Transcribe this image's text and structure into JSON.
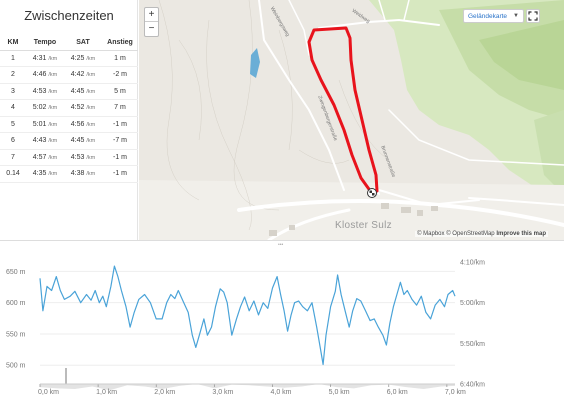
{
  "splits": {
    "title": "Zwischenzeiten",
    "columns": [
      "KM",
      "Tempo",
      "SAT",
      "Anstieg"
    ],
    "unit_km": "/km",
    "rows": [
      {
        "km": "1",
        "tempo": "4:31",
        "sat": "4:25",
        "anstieg": "1 m"
      },
      {
        "km": "2",
        "tempo": "4:46",
        "sat": "4:42",
        "anstieg": "-2 m"
      },
      {
        "km": "3",
        "tempo": "4:53",
        "sat": "4:45",
        "anstieg": "5 m"
      },
      {
        "km": "4",
        "tempo": "5:02",
        "sat": "4:52",
        "anstieg": "7 m"
      },
      {
        "km": "5",
        "tempo": "5:01",
        "sat": "4:56",
        "anstieg": "-1 m"
      },
      {
        "km": "6",
        "tempo": "4:43",
        "sat": "4:45",
        "anstieg": "-7 m"
      },
      {
        "km": "7",
        "tempo": "4:57",
        "sat": "4:53",
        "anstieg": "-1 m"
      },
      {
        "km": "0.14",
        "tempo": "4:35",
        "sat": "4:38",
        "anstieg": "-1 m"
      }
    ]
  },
  "map": {
    "zoom_in": "+",
    "zoom_out": "−",
    "layer_select": "Geländekarte",
    "place_label": "Kloster Sulz",
    "attribution_mapbox": "© Mapbox",
    "attribution_osm": "© OpenStreetMap",
    "attribution_improve": "Improve this map",
    "streets": {
      "s1": "Weinbergsweg",
      "s2": "Weidweg",
      "s3": "Zwingenbergerstraße",
      "s4": "Brunnenstraße",
      "s5": "Hauptstraße"
    },
    "colors": {
      "route": "#e8131c",
      "forest": "#cfe3b4",
      "water": "#6aaed6"
    }
  },
  "chart_data": {
    "type": "line",
    "x_ticks": [
      "0,0 km",
      "1,0 km",
      "2,0 km",
      "3,0 km",
      "4,0 km",
      "5,0 km",
      "6,0 km",
      "7,0 km"
    ],
    "y_left_ticks": [
      "650 m",
      "600 m",
      "550 m",
      "500 m"
    ],
    "y_right_ticks": [
      "4:10/km",
      "5:00/km",
      "5:50/km",
      "6:40/km"
    ],
    "pace_color": "#4aa3d8",
    "elevation_fill": "#e3e3e3",
    "pace_series": [
      {
        "x": 0.0,
        "y": 270
      },
      {
        "x": 0.05,
        "y": 310
      },
      {
        "x": 0.12,
        "y": 280
      },
      {
        "x": 0.2,
        "y": 285
      },
      {
        "x": 0.28,
        "y": 268
      },
      {
        "x": 0.35,
        "y": 285
      },
      {
        "x": 0.42,
        "y": 296
      },
      {
        "x": 0.52,
        "y": 292
      },
      {
        "x": 0.6,
        "y": 286
      },
      {
        "x": 0.7,
        "y": 300
      },
      {
        "x": 0.8,
        "y": 290
      },
      {
        "x": 0.88,
        "y": 297
      },
      {
        "x": 0.95,
        "y": 285
      },
      {
        "x": 1.02,
        "y": 300
      },
      {
        "x": 1.08,
        "y": 292
      },
      {
        "x": 1.14,
        "y": 305
      },
      {
        "x": 1.22,
        "y": 280
      },
      {
        "x": 1.28,
        "y": 255
      },
      {
        "x": 1.34,
        "y": 268
      },
      {
        "x": 1.4,
        "y": 285
      },
      {
        "x": 1.48,
        "y": 305
      },
      {
        "x": 1.55,
        "y": 330
      },
      {
        "x": 1.62,
        "y": 312
      },
      {
        "x": 1.7,
        "y": 296
      },
      {
        "x": 1.8,
        "y": 290
      },
      {
        "x": 1.9,
        "y": 300
      },
      {
        "x": 2.0,
        "y": 320
      },
      {
        "x": 2.1,
        "y": 320
      },
      {
        "x": 2.18,
        "y": 300
      },
      {
        "x": 2.25,
        "y": 290
      },
      {
        "x": 2.32,
        "y": 295
      },
      {
        "x": 2.38,
        "y": 285
      },
      {
        "x": 2.46,
        "y": 298
      },
      {
        "x": 2.55,
        "y": 312
      },
      {
        "x": 2.62,
        "y": 340
      },
      {
        "x": 2.68,
        "y": 355
      },
      {
        "x": 2.75,
        "y": 338
      },
      {
        "x": 2.82,
        "y": 320
      },
      {
        "x": 2.88,
        "y": 340
      },
      {
        "x": 2.95,
        "y": 330
      },
      {
        "x": 3.02,
        "y": 305
      },
      {
        "x": 3.1,
        "y": 283
      },
      {
        "x": 3.16,
        "y": 287
      },
      {
        "x": 3.22,
        "y": 300
      },
      {
        "x": 3.3,
        "y": 340
      },
      {
        "x": 3.38,
        "y": 320
      },
      {
        "x": 3.45,
        "y": 305
      },
      {
        "x": 3.52,
        "y": 293
      },
      {
        "x": 3.6,
        "y": 310
      },
      {
        "x": 3.68,
        "y": 298
      },
      {
        "x": 3.76,
        "y": 315
      },
      {
        "x": 3.84,
        "y": 300
      },
      {
        "x": 3.92,
        "y": 307
      },
      {
        "x": 4.0,
        "y": 282
      },
      {
        "x": 4.08,
        "y": 268
      },
      {
        "x": 4.14,
        "y": 290
      },
      {
        "x": 4.2,
        "y": 310
      },
      {
        "x": 4.26,
        "y": 335
      },
      {
        "x": 4.32,
        "y": 315
      },
      {
        "x": 4.38,
        "y": 300
      },
      {
        "x": 4.45,
        "y": 298
      },
      {
        "x": 4.52,
        "y": 305
      },
      {
        "x": 4.6,
        "y": 310
      },
      {
        "x": 4.68,
        "y": 300
      },
      {
        "x": 4.76,
        "y": 330
      },
      {
        "x": 4.82,
        "y": 355
      },
      {
        "x": 4.87,
        "y": 376
      },
      {
        "x": 4.92,
        "y": 340
      },
      {
        "x": 5.0,
        "y": 305
      },
      {
        "x": 5.08,
        "y": 286
      },
      {
        "x": 5.12,
        "y": 266
      },
      {
        "x": 5.18,
        "y": 290
      },
      {
        "x": 5.25,
        "y": 310
      },
      {
        "x": 5.32,
        "y": 330
      },
      {
        "x": 5.38,
        "y": 310
      },
      {
        "x": 5.45,
        "y": 295
      },
      {
        "x": 5.52,
        "y": 298
      },
      {
        "x": 5.6,
        "y": 310
      },
      {
        "x": 5.68,
        "y": 322
      },
      {
        "x": 5.75,
        "y": 320
      },
      {
        "x": 5.82,
        "y": 330
      },
      {
        "x": 5.9,
        "y": 340
      },
      {
        "x": 5.96,
        "y": 352
      },
      {
        "x": 6.02,
        "y": 325
      },
      {
        "x": 6.08,
        "y": 305
      },
      {
        "x": 6.14,
        "y": 290
      },
      {
        "x": 6.2,
        "y": 275
      },
      {
        "x": 6.26,
        "y": 290
      },
      {
        "x": 6.32,
        "y": 285
      },
      {
        "x": 6.4,
        "y": 296
      },
      {
        "x": 6.48,
        "y": 303
      },
      {
        "x": 6.56,
        "y": 292
      },
      {
        "x": 6.64,
        "y": 312
      },
      {
        "x": 6.72,
        "y": 320
      },
      {
        "x": 6.8,
        "y": 303
      },
      {
        "x": 6.88,
        "y": 296
      },
      {
        "x": 6.96,
        "y": 305
      },
      {
        "x": 7.02,
        "y": 290
      },
      {
        "x": 7.1,
        "y": 285
      },
      {
        "x": 7.14,
        "y": 292
      }
    ],
    "elevation_series": [
      {
        "x": 0.0,
        "y": 465
      },
      {
        "x": 0.3,
        "y": 463
      },
      {
        "x": 0.6,
        "y": 462
      },
      {
        "x": 0.9,
        "y": 466
      },
      {
        "x": 1.2,
        "y": 460
      },
      {
        "x": 1.5,
        "y": 468
      },
      {
        "x": 1.8,
        "y": 466
      },
      {
        "x": 2.1,
        "y": 462
      },
      {
        "x": 2.4,
        "y": 467
      },
      {
        "x": 2.7,
        "y": 470
      },
      {
        "x": 3.0,
        "y": 463
      },
      {
        "x": 3.3,
        "y": 469
      },
      {
        "x": 3.6,
        "y": 468
      },
      {
        "x": 3.9,
        "y": 466
      },
      {
        "x": 4.2,
        "y": 464
      },
      {
        "x": 4.5,
        "y": 466
      },
      {
        "x": 4.8,
        "y": 470
      },
      {
        "x": 5.1,
        "y": 465
      },
      {
        "x": 5.4,
        "y": 463
      },
      {
        "x": 5.7,
        "y": 468
      },
      {
        "x": 6.0,
        "y": 469
      },
      {
        "x": 6.3,
        "y": 465
      },
      {
        "x": 6.6,
        "y": 462
      },
      {
        "x": 6.9,
        "y": 466
      },
      {
        "x": 7.14,
        "y": 467
      }
    ],
    "x_range": [
      0,
      7.14
    ],
    "y_left_range": [
      470,
      665
    ],
    "y_right_range_seconds": [
      250,
      400
    ]
  }
}
